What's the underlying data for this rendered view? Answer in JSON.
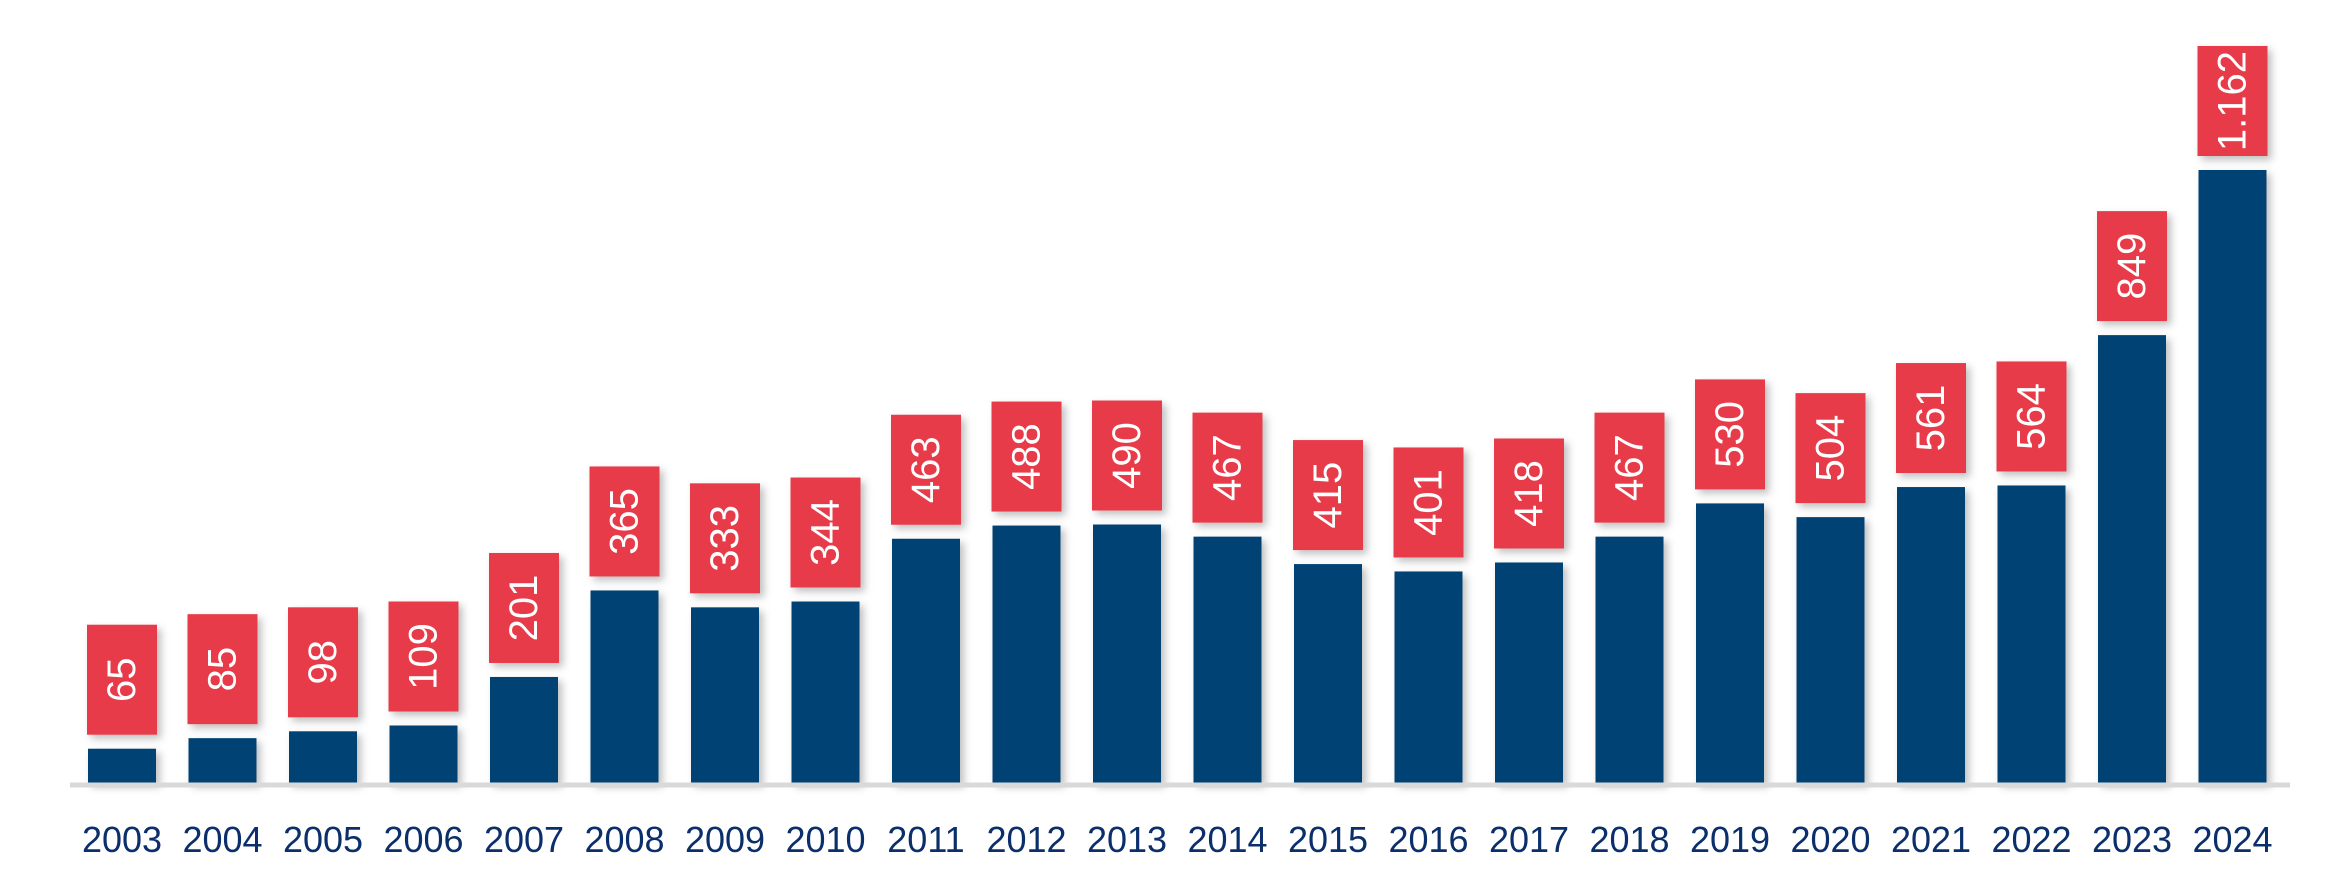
{
  "chart_data": {
    "type": "bar",
    "categories": [
      "2003",
      "2004",
      "2005",
      "2006",
      "2007",
      "2008",
      "2009",
      "2010",
      "2011",
      "2012",
      "2013",
      "2014",
      "2015",
      "2016",
      "2017",
      "2018",
      "2019",
      "2020",
      "2021",
      "2022",
      "2023",
      "2024"
    ],
    "values": [
      65,
      85,
      98,
      109,
      201,
      365,
      333,
      344,
      463,
      488,
      490,
      467,
      415,
      401,
      418,
      467,
      530,
      504,
      561,
      564,
      849,
      1162
    ],
    "value_labels": [
      "65",
      "85",
      "98",
      "109",
      "201",
      "365",
      "333",
      "344",
      "463",
      "488",
      "490",
      "467",
      "415",
      "401",
      "418",
      "467",
      "530",
      "504",
      "561",
      "564",
      "849",
      "1.162"
    ],
    "title": "",
    "xlabel": "",
    "ylabel": "",
    "ylim": [
      0,
      1162
    ],
    "grid": false,
    "legend": "none",
    "colors": {
      "bar": "#064373",
      "label_badge": "#e73a4a",
      "label_text": "#ffffff",
      "axis_text": "#0b2f6b",
      "baseline": "#d9d9d9"
    }
  }
}
